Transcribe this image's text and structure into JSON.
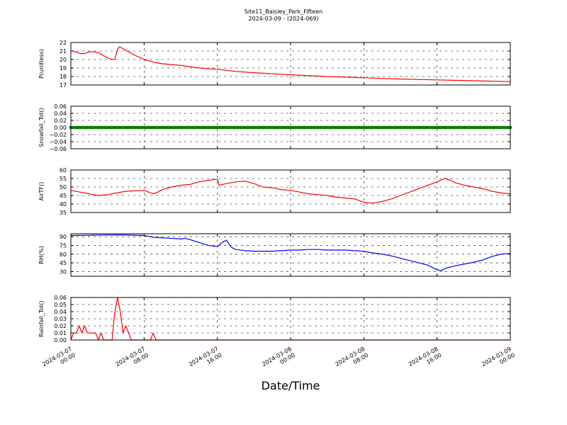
{
  "chart_data": {
    "type": "line",
    "title": "Site11_Baisley_Park_Fifteen",
    "subtitle": "2024-03-09 - (2024-069)",
    "xlabel": "Date/Time",
    "x_range": [
      "2024-03-07 00:00",
      "2024-03-09 00:00"
    ],
    "x_ticks": [
      {
        "hours": 0,
        "line1": "2024-03-07",
        "line2": "00:00"
      },
      {
        "hours": 8,
        "line1": "2024-03-07",
        "line2": "08:00"
      },
      {
        "hours": 16,
        "line1": "2024-03-07",
        "line2": "16:00"
      },
      {
        "hours": 24,
        "line1": "2024-03-08",
        "line2": "00:00"
      },
      {
        "hours": 32,
        "line1": "2024-03-08",
        "line2": "08:00"
      },
      {
        "hours": 40,
        "line1": "2024-03-08",
        "line2": "16:00"
      },
      {
        "hours": 48,
        "line1": "2024-03-09",
        "line2": "00:00"
      }
    ],
    "grid": true,
    "panels": [
      {
        "name": "P",
        "ylabel": "P(unitless)",
        "ylim": [
          17,
          22
        ],
        "yticks": [
          "17",
          "18",
          "19",
          "20",
          "21",
          "22"
        ],
        "ytick_values": [
          17,
          18,
          19,
          20,
          21,
          22
        ],
        "color": "#ff0000",
        "marker": false,
        "points": [
          [
            0,
            21.0
          ],
          [
            0.5,
            20.9
          ],
          [
            1,
            20.7
          ],
          [
            1.5,
            20.7
          ],
          [
            2,
            20.9
          ],
          [
            2.5,
            20.9
          ],
          [
            3,
            20.8
          ],
          [
            3.5,
            20.5
          ],
          [
            4,
            20.2
          ],
          [
            4.5,
            20.0
          ],
          [
            4.8,
            20.0
          ],
          [
            5.1,
            21.2
          ],
          [
            5.3,
            21.5
          ],
          [
            6,
            21.1
          ],
          [
            7,
            20.5
          ],
          [
            8,
            20.0
          ],
          [
            9,
            19.7
          ],
          [
            10,
            19.5
          ],
          [
            12,
            19.3
          ],
          [
            14,
            19.0
          ],
          [
            16,
            18.85
          ],
          [
            18,
            18.6
          ],
          [
            20,
            18.45
          ],
          [
            24,
            18.2
          ],
          [
            28,
            18.0
          ],
          [
            32,
            17.85
          ],
          [
            36,
            17.7
          ],
          [
            40,
            17.6
          ],
          [
            44,
            17.5
          ],
          [
            48,
            17.4
          ]
        ]
      },
      {
        "name": "Snowfall",
        "ylabel": "Snowfall_Tot()",
        "ylim": [
          -0.06,
          0.06
        ],
        "yticks": [
          "−0.06",
          "−0.04",
          "−0.02",
          "0.00",
          "0.02",
          "0.04",
          "0.06"
        ],
        "ytick_values": [
          -0.06,
          -0.04,
          -0.02,
          0.0,
          0.02,
          0.04,
          0.06
        ],
        "color": "#008000",
        "marker": true,
        "constant_value": 0.0
      },
      {
        "name": "AirTF",
        "ylabel": "AirTF()",
        "ylim": [
          35,
          60
        ],
        "yticks": [
          "35",
          "40",
          "45",
          "50",
          "55",
          "60"
        ],
        "ytick_values": [
          35,
          40,
          45,
          50,
          55,
          60
        ],
        "color": "#ff0000",
        "marker": false,
        "points": [
          [
            0,
            48
          ],
          [
            1,
            47
          ],
          [
            2,
            46
          ],
          [
            3,
            45
          ],
          [
            4,
            45.5
          ],
          [
            5,
            46.5
          ],
          [
            6,
            47.5
          ],
          [
            8,
            48
          ],
          [
            9,
            46
          ],
          [
            9.5,
            47
          ],
          [
            10,
            48.5
          ],
          [
            11,
            50
          ],
          [
            12,
            51
          ],
          [
            13,
            51.5
          ],
          [
            14,
            53
          ],
          [
            15,
            54
          ],
          [
            16,
            54.5
          ],
          [
            16.2,
            51
          ],
          [
            17,
            52
          ],
          [
            18,
            53
          ],
          [
            19,
            53.5
          ],
          [
            20,
            52
          ],
          [
            21,
            50
          ],
          [
            22,
            49.5
          ],
          [
            23,
            48.5
          ],
          [
            24,
            48
          ],
          [
            25,
            47
          ],
          [
            26,
            46
          ],
          [
            27,
            45.5
          ],
          [
            28,
            45
          ],
          [
            29,
            44
          ],
          [
            30,
            43.5
          ],
          [
            31,
            43
          ],
          [
            32,
            41
          ],
          [
            33,
            40.5
          ],
          [
            34,
            41.5
          ],
          [
            35,
            43
          ],
          [
            36,
            45
          ],
          [
            37,
            47
          ],
          [
            38,
            49
          ],
          [
            39,
            51
          ],
          [
            40,
            53
          ],
          [
            40.8,
            55
          ],
          [
            41.5,
            54
          ],
          [
            42,
            52.5
          ],
          [
            43,
            51
          ],
          [
            44,
            50
          ],
          [
            45,
            49
          ],
          [
            46,
            47.5
          ],
          [
            47,
            46.5
          ],
          [
            48,
            46
          ]
        ]
      },
      {
        "name": "RH",
        "ylabel": "RH(%)",
        "ylim": [
          22,
          95
        ],
        "yticks": [
          "30",
          "45",
          "60",
          "75",
          "90"
        ],
        "ytick_values": [
          30,
          45,
          60,
          75,
          90
        ],
        "color": "#0000ff",
        "marker": false,
        "points": [
          [
            0,
            92
          ],
          [
            2,
            92.5
          ],
          [
            4,
            93
          ],
          [
            6,
            93
          ],
          [
            8,
            92
          ],
          [
            9,
            89
          ],
          [
            10,
            88
          ],
          [
            11,
            87
          ],
          [
            12,
            86
          ],
          [
            12.5,
            87
          ],
          [
            13,
            85
          ],
          [
            14,
            80
          ],
          [
            15,
            75
          ],
          [
            15.5,
            74
          ],
          [
            16,
            73
          ],
          [
            16.5,
            80
          ],
          [
            17,
            84
          ],
          [
            17.5,
            72
          ],
          [
            18,
            68
          ],
          [
            19,
            66
          ],
          [
            20,
            65
          ],
          [
            21,
            65
          ],
          [
            22,
            65
          ],
          [
            23,
            66
          ],
          [
            24,
            67
          ],
          [
            25,
            67
          ],
          [
            26,
            68
          ],
          [
            27,
            68
          ],
          [
            28,
            67
          ],
          [
            29,
            67
          ],
          [
            30,
            67
          ],
          [
            31,
            66
          ],
          [
            32,
            65
          ],
          [
            33,
            62
          ],
          [
            34,
            60
          ],
          [
            35,
            57
          ],
          [
            36,
            53
          ],
          [
            37,
            49
          ],
          [
            38,
            45
          ],
          [
            39,
            41
          ],
          [
            39.5,
            37
          ],
          [
            40,
            33
          ],
          [
            40.5,
            32
          ],
          [
            41,
            36
          ],
          [
            42,
            40
          ],
          [
            43,
            43
          ],
          [
            44,
            46
          ],
          [
            45,
            50
          ],
          [
            46,
            56
          ],
          [
            47,
            60
          ],
          [
            48,
            61
          ]
        ]
      },
      {
        "name": "Rainfall",
        "ylabel": "Rainfall_Tot()",
        "ylim": [
          0,
          0.06
        ],
        "yticks": [
          "0.00",
          "0.01",
          "0.02",
          "0.03",
          "0.04",
          "0.05",
          "0.06"
        ],
        "ytick_values": [
          0,
          0.01,
          0.02,
          0.03,
          0.04,
          0.05,
          0.06
        ],
        "color": "#ff0000",
        "marker": false,
        "points": [
          [
            0,
            0
          ],
          [
            0.3,
            0.01
          ],
          [
            0.6,
            0.01
          ],
          [
            0.9,
            0.02
          ],
          [
            1.2,
            0.01
          ],
          [
            1.5,
            0.02
          ],
          [
            1.8,
            0.01
          ],
          [
            2.1,
            0.01
          ],
          [
            2.4,
            0.01
          ],
          [
            2.7,
            0.01
          ],
          [
            3.0,
            0.0
          ],
          [
            3.3,
            0.01
          ],
          [
            3.6,
            0.0
          ],
          [
            4.5,
            0.0
          ],
          [
            4.8,
            0.04
          ],
          [
            5.1,
            0.06
          ],
          [
            5.4,
            0.04
          ],
          [
            5.7,
            0.01
          ],
          [
            6.0,
            0.02
          ],
          [
            6.3,
            0.01
          ],
          [
            6.6,
            0.0
          ],
          [
            8.7,
            0.0
          ],
          [
            9.0,
            0.01
          ],
          [
            9.3,
            0.0
          ],
          [
            48,
            0.0
          ]
        ]
      }
    ]
  }
}
